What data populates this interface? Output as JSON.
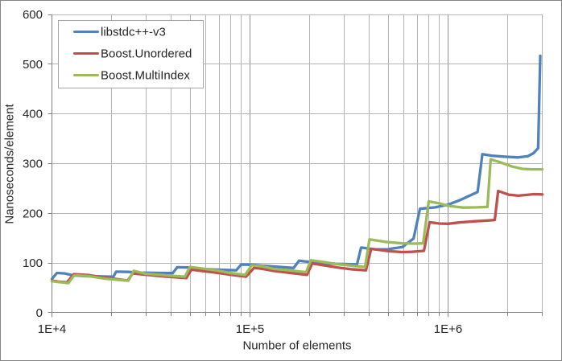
{
  "chart_data": {
    "type": "line",
    "title": "",
    "xlabel": "Number of elements",
    "ylabel": "Nanoseconds/element",
    "x_scale": "log",
    "xlim": [
      10000,
      3000000
    ],
    "ylim": [
      0,
      600
    ],
    "y_ticks": [
      0,
      100,
      200,
      300,
      400,
      500,
      600
    ],
    "x_major_ticks": [
      10000,
      100000,
      1000000
    ],
    "x_tick_labels": [
      "1E+4",
      "1E+5",
      "1E+6"
    ],
    "grid": "both",
    "legend_position": "top-left-inside",
    "series": [
      {
        "name": "libstdc++-v3",
        "color": "#4f81bd",
        "points": [
          [
            10000,
            68
          ],
          [
            10600,
            80
          ],
          [
            11600,
            79
          ],
          [
            12800,
            75
          ],
          [
            14700,
            73.5
          ],
          [
            17700,
            73
          ],
          [
            20400,
            72.3
          ],
          [
            21100,
            82.5
          ],
          [
            24300,
            82
          ],
          [
            28300,
            80.6
          ],
          [
            35700,
            80
          ],
          [
            40700,
            79.6
          ],
          [
            42900,
            91.5
          ],
          [
            48600,
            91
          ],
          [
            57000,
            88
          ],
          [
            68100,
            86.5
          ],
          [
            85300,
            85.3
          ],
          [
            90200,
            97
          ],
          [
            103000,
            96.5
          ],
          [
            115999,
            94.5
          ],
          [
            131000,
            93
          ],
          [
            166000,
            90
          ],
          [
            177000,
            104.5
          ],
          [
            202000,
            102
          ],
          [
            225999,
            99.5
          ],
          [
            280000,
            98
          ],
          [
            347000,
            97.3
          ],
          [
            364000,
            131
          ],
          [
            426999,
            127.5
          ],
          [
            496000,
            127.7
          ],
          [
            587000,
            132
          ],
          [
            669000,
            149
          ],
          [
            721000,
            209
          ],
          [
            861000,
            212
          ],
          [
            1000000,
            217.5
          ],
          [
            1140000,
            226
          ],
          [
            1310000,
            237
          ],
          [
            1410000,
            243
          ],
          [
            1490000,
            319
          ],
          [
            1660000,
            316
          ],
          [
            1910000,
            314
          ],
          [
            2260000,
            312.5
          ],
          [
            2530000,
            315
          ],
          [
            2700000,
            321
          ],
          [
            2850000,
            331
          ],
          [
            2920000,
            517
          ]
        ]
      },
      {
        "name": "Boost.Unordered",
        "color": "#c0504d",
        "points": [
          [
            10000,
            64.5
          ],
          [
            10800,
            62.5
          ],
          [
            11900,
            61
          ],
          [
            12900,
            77.5
          ],
          [
            13400,
            77
          ],
          [
            15400,
            75.5
          ],
          [
            18400,
            70.5
          ],
          [
            21300,
            67.5
          ],
          [
            24100,
            64.5
          ],
          [
            25600,
            79
          ],
          [
            29600,
            76.5
          ],
          [
            35400,
            73.5
          ],
          [
            41100,
            71.5
          ],
          [
            47699,
            69.5
          ],
          [
            50500,
            86.5
          ],
          [
            57000,
            84
          ],
          [
            68100,
            80.5
          ],
          [
            79100,
            76.5
          ],
          [
            95399,
            72.5
          ],
          [
            105000,
            90.5
          ],
          [
            115999,
            88
          ],
          [
            132000,
            84
          ],
          [
            160000,
            80
          ],
          [
            194000,
            76
          ],
          [
            206000,
            99
          ],
          [
            225999,
            96.5
          ],
          [
            277000,
            91
          ],
          [
            322000,
            87.5
          ],
          [
            385000,
            85.3
          ],
          [
            409000,
            128.5
          ],
          [
            496000,
            124
          ],
          [
            587000,
            122
          ],
          [
            656000,
            122.5
          ],
          [
            755000,
            124.5
          ],
          [
            806000,
            182
          ],
          [
            902000,
            179.5
          ],
          [
            1000000,
            179
          ],
          [
            1140000,
            181.5
          ],
          [
            1370000,
            184
          ],
          [
            1580000,
            185.5
          ],
          [
            1720000,
            186.5
          ],
          [
            1790000,
            245
          ],
          [
            2020000,
            237.5
          ],
          [
            2260000,
            235.5
          ],
          [
            2720000,
            238.5
          ],
          [
            2990000,
            238
          ]
        ]
      },
      {
        "name": "Boost.MultiIndex",
        "color": "#9bbb59",
        "points": [
          [
            10000,
            63.5
          ],
          [
            10900,
            61.5
          ],
          [
            12100,
            59.5
          ],
          [
            12900,
            74.5
          ],
          [
            13400,
            75
          ],
          [
            15400,
            73.5
          ],
          [
            18400,
            68.6
          ],
          [
            22799,
            65.2
          ],
          [
            24300,
            64.4
          ],
          [
            25900,
            84.3
          ],
          [
            29600,
            78.5
          ],
          [
            35400,
            76
          ],
          [
            40700,
            74
          ],
          [
            46900,
            72.5
          ],
          [
            49800,
            92
          ],
          [
            57000,
            89
          ],
          [
            68100,
            85
          ],
          [
            79100,
            80
          ],
          [
            94500,
            76
          ],
          [
            102000,
            95.5
          ],
          [
            115999,
            93
          ],
          [
            132000,
            88
          ],
          [
            160000,
            85
          ],
          [
            192000,
            81.5
          ],
          [
            202999,
            105.5
          ],
          [
            225999,
            103
          ],
          [
            277000,
            97.5
          ],
          [
            338000,
            94
          ],
          [
            381000,
            92
          ],
          [
            401000,
            147.5
          ],
          [
            482000,
            142.5
          ],
          [
            587000,
            139.5
          ],
          [
            681000,
            139
          ],
          [
            748000,
            139.5
          ],
          [
            799000,
            224
          ],
          [
            902000,
            220
          ],
          [
            1000000,
            215
          ],
          [
            1190000,
            211.5
          ],
          [
            1400000,
            212
          ],
          [
            1580000,
            213
          ],
          [
            1640000,
            308.5
          ],
          [
            1820000,
            303
          ],
          [
            2110000,
            294
          ],
          [
            2370000,
            289.5
          ],
          [
            2650000,
            288.5
          ],
          [
            2990000,
            288.5
          ]
        ]
      }
    ]
  },
  "colors": {
    "background": "#ffffff",
    "chart_border": "#848484",
    "axis_line": "#808080",
    "gridline_minor": "#b3b3b3",
    "gridline_major": "#8f8f8f",
    "legend_border": "#a6a6a6",
    "text": "#262626"
  }
}
